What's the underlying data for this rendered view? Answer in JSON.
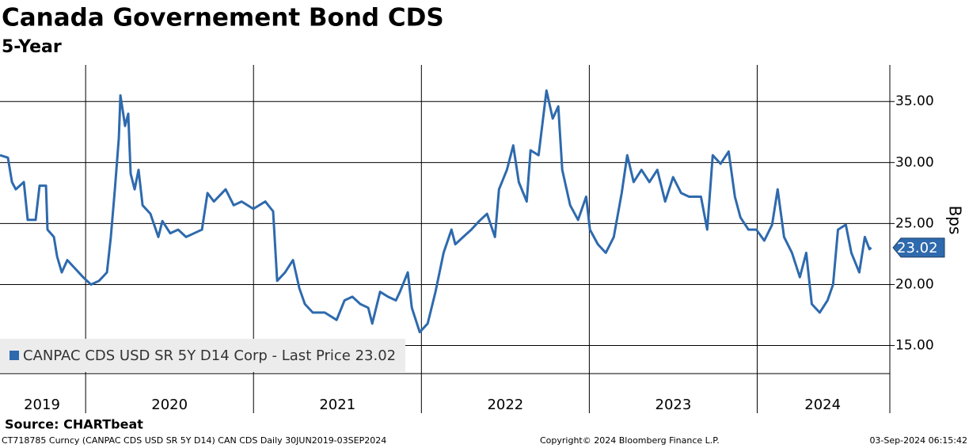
{
  "chart_data": {
    "type": "line",
    "title": "Canada Governement Bond CDS",
    "subtitle": "5-Year",
    "y_axis_label": "Bps",
    "source": "Source: CHARTbeat",
    "footer_left": "CT718785 Curncy (CANPAC CDS USD SR 5Y D14) CAN CDS  Daily 30JUN2019-03SEP2024",
    "footer_center": "Copyright© 2024 Bloomberg Finance L.P.",
    "footer_right": "03-Sep-2024 06:15:42",
    "xlim": [
      2019.49,
      2024.79
    ],
    "xticks": [
      2020,
      2021,
      2022,
      2023,
      2024
    ],
    "x_labels": [
      {
        "value": 2019.74,
        "label": "2019"
      },
      {
        "value": 2020.5,
        "label": "2020"
      },
      {
        "value": 2021.5,
        "label": "2021"
      },
      {
        "value": 2022.5,
        "label": "2022"
      },
      {
        "value": 2023.5,
        "label": "2023"
      },
      {
        "value": 2024.39,
        "label": "2024"
      }
    ],
    "ylim": [
      12.7,
      38
    ],
    "yticks": [
      {
        "value": 15,
        "label": "15.00"
      },
      {
        "value": 20,
        "label": "20.00"
      },
      {
        "value": 25,
        "label": "25.00"
      },
      {
        "value": 30,
        "label": "30.00"
      },
      {
        "value": 35,
        "label": "35.00"
      }
    ],
    "grid": true,
    "legend": "bottom-left",
    "last_price": {
      "value": 23.02,
      "label": "23.02"
    },
    "series": [
      {
        "name": "CANPAC CDS USD SR 5Y D14 Corp - Last Price 23.02",
        "color": "#2e6aad",
        "x": [
          2019.49,
          2019.537,
          2019.561,
          2019.584,
          2019.632,
          2019.655,
          2019.702,
          2019.726,
          2019.764,
          2019.773,
          2019.811,
          2019.83,
          2019.858,
          2019.891,
          2019.938,
          2019.985,
          2020.032,
          2020.08,
          2020.127,
          2020.15,
          2020.174,
          2020.198,
          2020.207,
          2020.235,
          2020.254,
          2020.268,
          2020.292,
          2020.315,
          2020.339,
          2020.386,
          2020.433,
          2020.457,
          2020.504,
          2020.551,
          2020.598,
          2020.646,
          2020.693,
          2020.726,
          2020.764,
          2020.834,
          2020.882,
          2020.929,
          2020.999,
          2021.07,
          2021.117,
          2021.141,
          2021.188,
          2021.235,
          2021.273,
          2021.306,
          2021.353,
          2021.424,
          2021.495,
          2021.542,
          2021.589,
          2021.636,
          2021.683,
          2021.707,
          2021.754,
          2021.801,
          2021.848,
          2021.872,
          2021.919,
          2021.943,
          2021.99,
          2022.037,
          2022.084,
          2022.132,
          2022.179,
          2022.202,
          2022.249,
          2022.297,
          2022.344,
          2022.391,
          2022.438,
          2022.462,
          2022.509,
          2022.547,
          2022.58,
          2022.627,
          2022.65,
          2022.698,
          2022.745,
          2022.782,
          2022.815,
          2022.839,
          2022.886,
          2022.933,
          2022.981,
          2023.004,
          2023.051,
          2023.098,
          2023.146,
          2023.193,
          2023.226,
          2023.264,
          2023.311,
          2023.358,
          2023.405,
          2023.452,
          2023.499,
          2023.547,
          2023.594,
          2023.665,
          2023.702,
          2023.735,
          2023.782,
          2023.83,
          2023.867,
          2023.9,
          2023.948,
          2023.995,
          2024.042,
          2024.089,
          2024.122,
          2024.16,
          2024.207,
          2024.254,
          2024.292,
          2024.325,
          2024.372,
          2024.419,
          2024.452,
          2024.481,
          2024.528,
          2024.561,
          2024.608,
          2024.641,
          2024.669,
          2024.679
        ],
        "values": [
          30.6,
          30.4,
          28.4,
          27.8,
          28.4,
          25.3,
          25.3,
          28.1,
          28.1,
          24.5,
          23.9,
          22.3,
          21.0,
          22.0,
          21.3,
          20.6,
          20.0,
          20.3,
          21.0,
          23.9,
          27.8,
          32.0,
          35.5,
          33.0,
          34.0,
          29.1,
          27.8,
          29.4,
          26.5,
          25.8,
          23.9,
          25.2,
          24.2,
          24.5,
          23.9,
          24.2,
          24.5,
          27.5,
          26.8,
          27.8,
          26.5,
          26.8,
          26.2,
          26.8,
          26.0,
          20.3,
          21.0,
          22.0,
          19.7,
          18.4,
          17.7,
          17.7,
          17.1,
          18.7,
          19.0,
          18.4,
          18.1,
          16.8,
          19.4,
          19.0,
          18.7,
          19.4,
          21.0,
          18.1,
          16.1,
          16.8,
          19.4,
          22.6,
          24.5,
          23.3,
          23.9,
          24.5,
          25.2,
          25.8,
          23.9,
          27.8,
          29.4,
          31.4,
          28.4,
          26.8,
          31.0,
          30.6,
          35.9,
          33.6,
          34.6,
          29.4,
          26.5,
          25.3,
          27.2,
          24.5,
          23.3,
          22.6,
          23.9,
          27.5,
          30.6,
          28.4,
          29.4,
          28.4,
          29.4,
          26.8,
          28.8,
          27.5,
          27.2,
          27.2,
          24.5,
          30.6,
          29.9,
          30.9,
          27.2,
          25.5,
          24.5,
          24.5,
          23.6,
          24.9,
          27.8,
          23.9,
          22.6,
          20.6,
          22.6,
          18.4,
          17.7,
          18.7,
          20.0,
          24.5,
          24.9,
          22.6,
          21.0,
          23.9,
          22.9,
          23.02
        ]
      }
    ]
  }
}
